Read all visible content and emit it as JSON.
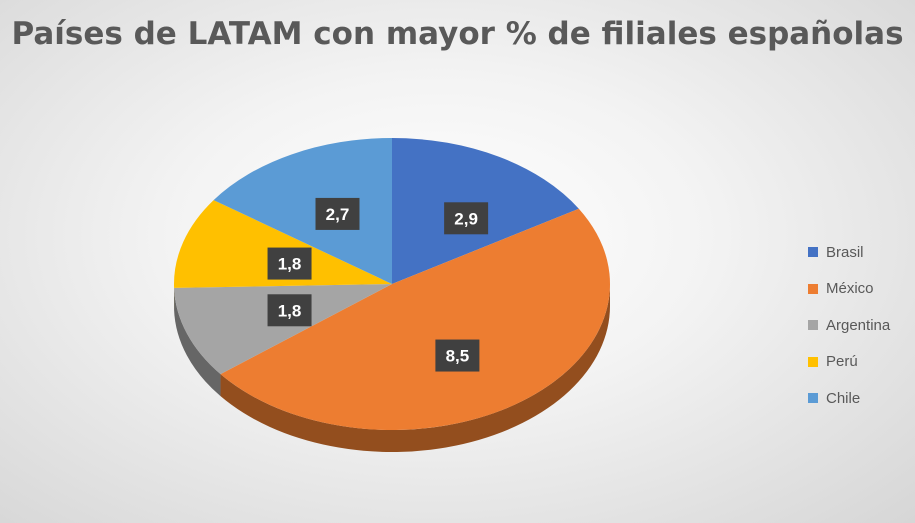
{
  "chart_data": {
    "type": "pie",
    "title": "Países de LATAM con mayor % de filiales españolas",
    "categories": [
      "Brasil",
      "México",
      "Argentina",
      "Perú",
      "Chile"
    ],
    "values": [
      2.9,
      8.5,
      1.8,
      1.8,
      2.7
    ],
    "value_labels": [
      "2,9",
      "8,5",
      "1,8",
      "1,8",
      "2,7"
    ],
    "colors": [
      "#4472C4",
      "#ED7D31",
      "#A5A5A5",
      "#FFC000",
      "#5B9BD5"
    ],
    "style": "3d",
    "legend": "right"
  }
}
